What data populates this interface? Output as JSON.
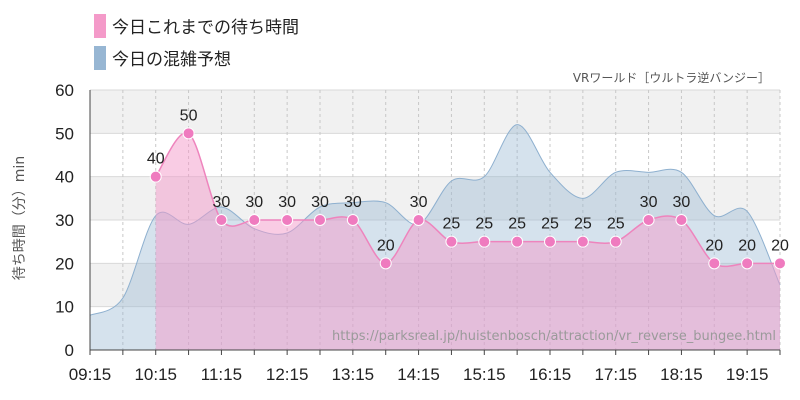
{
  "chart_data": {
    "type": "area",
    "subtitle": "VRワールド［ウルトラ逆バンジー］",
    "watermark": "https://parksreal.jp/huistenbosch/attraction/vr_reverse_bungee.html",
    "ylabel": "待ち時間（分）min",
    "xlabel": "",
    "ylim": [
      0,
      60
    ],
    "ytick_labels": [
      "0",
      "10",
      "20",
      "30",
      "40",
      "50",
      "60"
    ],
    "xlim": [
      "09:15",
      "19:45"
    ],
    "xtick_labels": [
      "09:15",
      "10:15",
      "11:15",
      "12:15",
      "13:15",
      "14:15",
      "15:15",
      "16:15",
      "17:15",
      "18:15",
      "19:15"
    ],
    "grid": true,
    "legend_position": "top-left",
    "series": [
      {
        "name": "今日これまでの待ち時間",
        "color": "#f49ac9",
        "points": [
          {
            "x": "10:15",
            "y": 40,
            "label": "40"
          },
          {
            "x": "10:45",
            "y": 50,
            "label": "50"
          },
          {
            "x": "11:15",
            "y": 30,
            "label": "30"
          },
          {
            "x": "11:45",
            "y": 30,
            "label": "30"
          },
          {
            "x": "12:15",
            "y": 30,
            "label": "30"
          },
          {
            "x": "12:45",
            "y": 30,
            "label": "30"
          },
          {
            "x": "13:15",
            "y": 30,
            "label": "30"
          },
          {
            "x": "13:45",
            "y": 20,
            "label": "20"
          },
          {
            "x": "14:15",
            "y": 30,
            "label": "30"
          },
          {
            "x": "14:45",
            "y": 25,
            "label": "25"
          },
          {
            "x": "15:15",
            "y": 25,
            "label": "25"
          },
          {
            "x": "15:45",
            "y": 25,
            "label": "25"
          },
          {
            "x": "16:15",
            "y": 25,
            "label": "25"
          },
          {
            "x": "16:45",
            "y": 25,
            "label": "25"
          },
          {
            "x": "17:15",
            "y": 25,
            "label": "25"
          },
          {
            "x": "17:45",
            "y": 30,
            "label": "30"
          },
          {
            "x": "18:15",
            "y": 30,
            "label": "30"
          },
          {
            "x": "18:45",
            "y": 20,
            "label": "20"
          },
          {
            "x": "19:15",
            "y": 20,
            "label": "20"
          },
          {
            "x": "19:45",
            "y": 20,
            "label": "20"
          }
        ]
      },
      {
        "name": "今日の混雑予想",
        "color": "#97b6d3",
        "points": [
          {
            "x": "09:15",
            "y": 8
          },
          {
            "x": "09:45",
            "y": 12
          },
          {
            "x": "10:15",
            "y": 31
          },
          {
            "x": "10:45",
            "y": 29
          },
          {
            "x": "11:15",
            "y": 33
          },
          {
            "x": "11:45",
            "y": 28
          },
          {
            "x": "12:15",
            "y": 27
          },
          {
            "x": "12:45",
            "y": 33
          },
          {
            "x": "13:15",
            "y": 34
          },
          {
            "x": "13:45",
            "y": 34
          },
          {
            "x": "14:15",
            "y": 29
          },
          {
            "x": "14:45",
            "y": 39
          },
          {
            "x": "15:15",
            "y": 40
          },
          {
            "x": "15:45",
            "y": 52
          },
          {
            "x": "16:15",
            "y": 41
          },
          {
            "x": "16:45",
            "y": 35
          },
          {
            "x": "17:15",
            "y": 41
          },
          {
            "x": "17:45",
            "y": 41
          },
          {
            "x": "18:15",
            "y": 41
          },
          {
            "x": "18:45",
            "y": 31
          },
          {
            "x": "19:15",
            "y": 32
          },
          {
            "x": "19:45",
            "y": 15
          }
        ]
      }
    ]
  }
}
